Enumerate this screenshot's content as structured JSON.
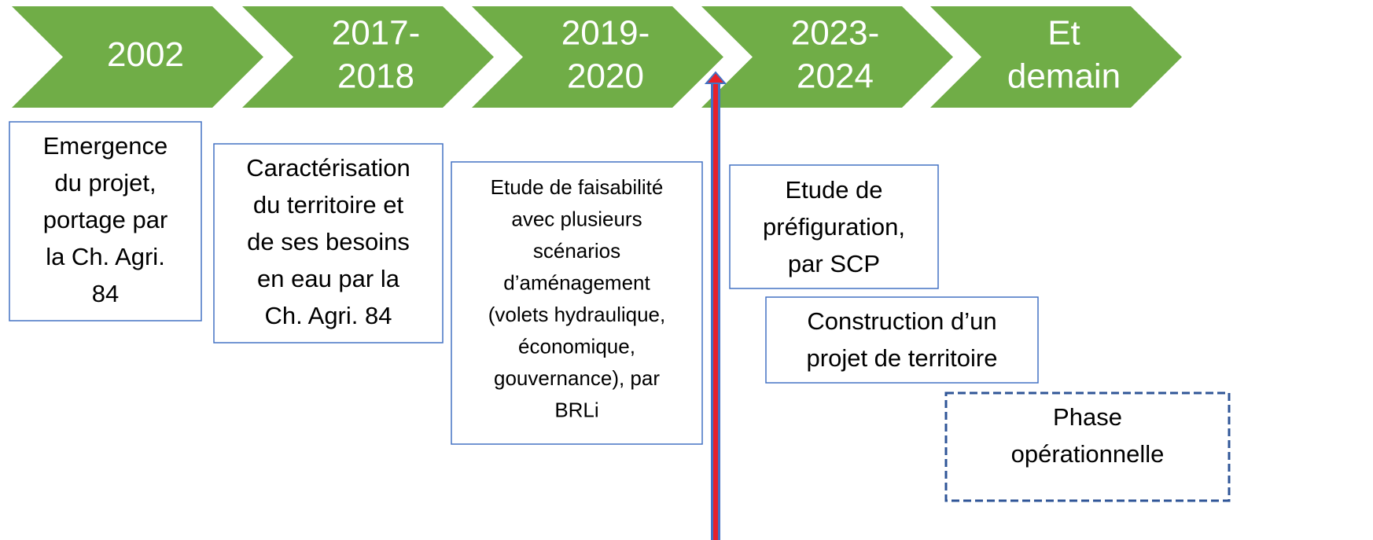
{
  "phases": [
    {
      "label": [
        "2002"
      ]
    },
    {
      "label": [
        "2017-",
        "2018"
      ]
    },
    {
      "label": [
        "2019-",
        "2020"
      ]
    },
    {
      "label": [
        "2023-",
        "2024"
      ]
    },
    {
      "label": [
        "Et",
        "demain"
      ]
    }
  ],
  "boxes": [
    {
      "text": [
        "Emergence",
        "du projet,",
        "portage par",
        "la Ch. Agri.",
        "84"
      ]
    },
    {
      "text": [
        "Caractérisation",
        "du territoire et",
        "de ses besoins",
        "en eau par la",
        "Ch. Agri. 84"
      ]
    },
    {
      "text": [
        "Etude de faisabilité",
        "avec plusieurs",
        "scénarios",
        "d’aménagement",
        "(volets hydraulique,",
        "économique,",
        "gouvernance), par",
        "BRLi"
      ]
    },
    {
      "text": [
        "Etude de",
        "préfiguration,",
        "par SCP"
      ]
    },
    {
      "text": [
        "Construction d’un",
        "projet de territoire"
      ]
    },
    {
      "text": [
        "Phase",
        "opérationnelle"
      ]
    }
  ]
}
